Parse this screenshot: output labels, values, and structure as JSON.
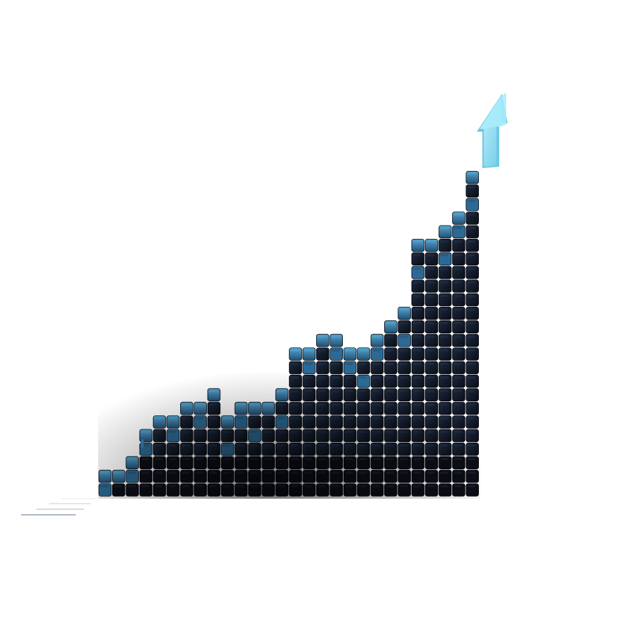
{
  "illustration": {
    "subject": "growth-staircase-of-cubes-with-arrow",
    "colors": {
      "background": "#ffffff",
      "cube_dark": "#0b0e16",
      "cube_mid": "#162236",
      "cube_blue": "#2b6a96",
      "cube_highlight": "#4f9cc9",
      "arrow": "#8fe0f4",
      "arrow_shadow": "#5fc3e0",
      "speed_lines": "#9aa4b4"
    },
    "icon_names": [
      "bar-column-icon",
      "up-arrow-icon",
      "speed-lines-icon"
    ],
    "column_heights": [
      2,
      2,
      3,
      5,
      6,
      6,
      7,
      7,
      8,
      6,
      7,
      7,
      7,
      8,
      11,
      11,
      12,
      12,
      11,
      11,
      12,
      13,
      14,
      19,
      19,
      20,
      21,
      24
    ]
  }
}
